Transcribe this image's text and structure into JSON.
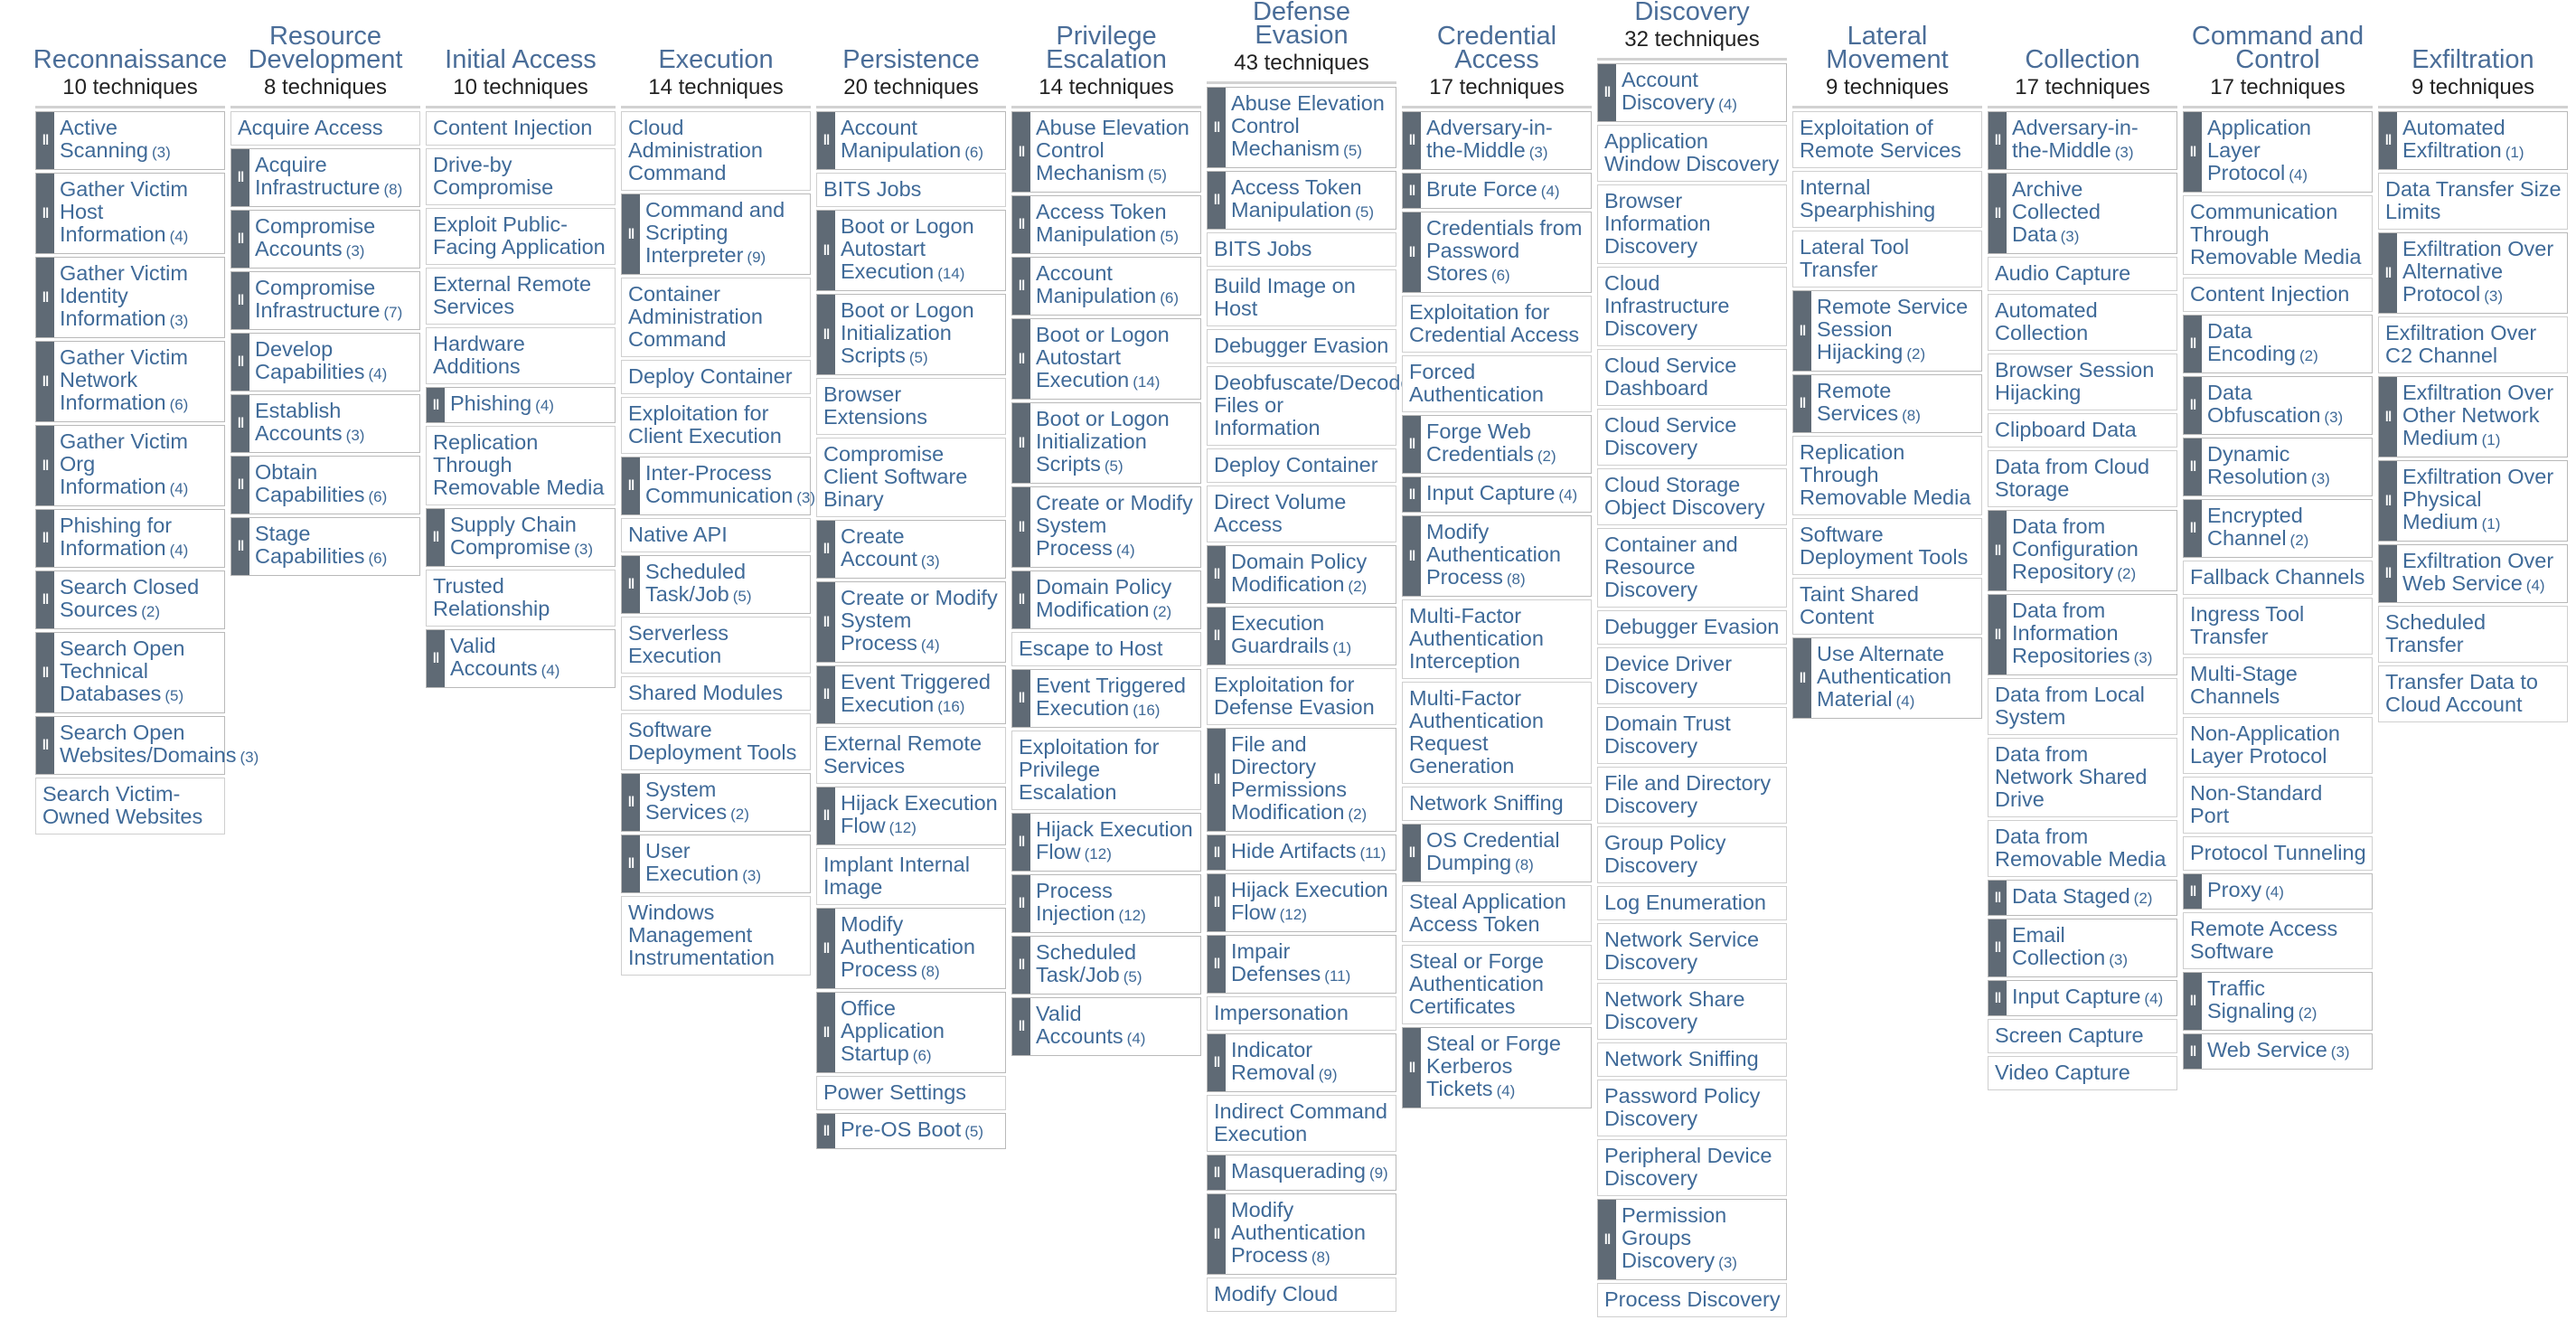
{
  "tactics": [
    {
      "name": "Reconnaissance",
      "count": "10 techniques",
      "techniques": [
        {
          "name": "Active Scanning",
          "sub": "(3)"
        },
        {
          "name": "Gather Victim Host Information",
          "sub": "(4)"
        },
        {
          "name": "Gather Victim Identity Information",
          "sub": "(3)"
        },
        {
          "name": "Gather Victim Network Information",
          "sub": "(6)"
        },
        {
          "name": "Gather Victim Org Information",
          "sub": "(4)"
        },
        {
          "name": "Phishing for Information",
          "sub": "(4)"
        },
        {
          "name": "Search Closed Sources",
          "sub": "(2)"
        },
        {
          "name": "Search Open Technical Databases",
          "sub": "(5)"
        },
        {
          "name": "Search Open Websites/Domains",
          "sub": "(3)"
        },
        {
          "name": "Search Victim-Owned Websites"
        }
      ]
    },
    {
      "name": "Resource Development",
      "count": "8 techniques",
      "techniques": [
        {
          "name": "Acquire Access"
        },
        {
          "name": "Acquire Infrastructure",
          "sub": "(8)"
        },
        {
          "name": "Compromise Accounts",
          "sub": "(3)"
        },
        {
          "name": "Compromise Infrastructure",
          "sub": "(7)"
        },
        {
          "name": "Develop Capabilities",
          "sub": "(4)"
        },
        {
          "name": "Establish Accounts",
          "sub": "(3)"
        },
        {
          "name": "Obtain Capabilities",
          "sub": "(6)"
        },
        {
          "name": "Stage Capabilities",
          "sub": "(6)"
        }
      ]
    },
    {
      "name": "Initial Access",
      "count": "10 techniques",
      "techniques": [
        {
          "name": "Content Injection"
        },
        {
          "name": "Drive-by Compromise"
        },
        {
          "name": "Exploit Public-Facing Application"
        },
        {
          "name": "External Remote Services"
        },
        {
          "name": "Hardware Additions"
        },
        {
          "name": "Phishing",
          "sub": "(4)"
        },
        {
          "name": "Replication Through Removable Media"
        },
        {
          "name": "Supply Chain Compromise",
          "sub": "(3)"
        },
        {
          "name": "Trusted Relationship"
        },
        {
          "name": "Valid Accounts",
          "sub": "(4)"
        }
      ]
    },
    {
      "name": "Execution",
      "count": "14 techniques",
      "techniques": [
        {
          "name": "Cloud Administration Command"
        },
        {
          "name": "Command and Scripting Interpreter",
          "sub": "(9)"
        },
        {
          "name": "Container Administration Command"
        },
        {
          "name": "Deploy Container"
        },
        {
          "name": "Exploitation for Client Execution"
        },
        {
          "name": "Inter-Process Communication",
          "sub": "(3)"
        },
        {
          "name": "Native API"
        },
        {
          "name": "Scheduled Task/Job",
          "sub": "(5)"
        },
        {
          "name": "Serverless Execution"
        },
        {
          "name": "Shared Modules"
        },
        {
          "name": "Software Deployment Tools"
        },
        {
          "name": "System Services",
          "sub": "(2)"
        },
        {
          "name": "User Execution",
          "sub": "(3)"
        },
        {
          "name": "Windows Management Instrumentation"
        }
      ]
    },
    {
      "name": "Persistence",
      "count": "20 techniques",
      "techniques": [
        {
          "name": "Account Manipulation",
          "sub": "(6)"
        },
        {
          "name": "BITS Jobs"
        },
        {
          "name": "Boot or Logon Autostart Execution",
          "sub": "(14)"
        },
        {
          "name": "Boot or Logon Initialization Scripts",
          "sub": "(5)"
        },
        {
          "name": "Browser Extensions"
        },
        {
          "name": "Compromise Client Software Binary"
        },
        {
          "name": "Create Account",
          "sub": "(3)"
        },
        {
          "name": "Create or Modify System Process",
          "sub": "(4)"
        },
        {
          "name": "Event Triggered Execution",
          "sub": "(16)"
        },
        {
          "name": "External Remote Services"
        },
        {
          "name": "Hijack Execution Flow",
          "sub": "(12)"
        },
        {
          "name": "Implant Internal Image"
        },
        {
          "name": "Modify Authentication Process",
          "sub": "(8)"
        },
        {
          "name": "Office Application Startup",
          "sub": "(6)"
        },
        {
          "name": "Power Settings"
        },
        {
          "name": "Pre-OS Boot",
          "sub": "(5)"
        }
      ]
    },
    {
      "name": "Privilege Escalation",
      "count": "14 techniques",
      "techniques": [
        {
          "name": "Abuse Elevation Control Mechanism",
          "sub": "(5)"
        },
        {
          "name": "Access Token Manipulation",
          "sub": "(5)"
        },
        {
          "name": "Account Manipulation",
          "sub": "(6)"
        },
        {
          "name": "Boot or Logon Autostart Execution",
          "sub": "(14)"
        },
        {
          "name": "Boot or Logon Initialization Scripts",
          "sub": "(5)"
        },
        {
          "name": "Create or Modify System Process",
          "sub": "(4)"
        },
        {
          "name": "Domain Policy Modification",
          "sub": "(2)"
        },
        {
          "name": "Escape to Host"
        },
        {
          "name": "Event Triggered Execution",
          "sub": "(16)"
        },
        {
          "name": "Exploitation for Privilege Escalation"
        },
        {
          "name": "Hijack Execution Flow",
          "sub": "(12)"
        },
        {
          "name": "Process Injection",
          "sub": "(12)"
        },
        {
          "name": "Scheduled Task/Job",
          "sub": "(5)"
        },
        {
          "name": "Valid Accounts",
          "sub": "(4)"
        }
      ]
    },
    {
      "name": "Defense Evasion",
      "count": "43 techniques",
      "techniques": [
        {
          "name": "Abuse Elevation Control Mechanism",
          "sub": "(5)"
        },
        {
          "name": "Access Token Manipulation",
          "sub": "(5)"
        },
        {
          "name": "BITS Jobs"
        },
        {
          "name": "Build Image on Host"
        },
        {
          "name": "Debugger Evasion"
        },
        {
          "name": "Deobfuscate/Decode Files or Information"
        },
        {
          "name": "Deploy Container"
        },
        {
          "name": "Direct Volume Access"
        },
        {
          "name": "Domain Policy Modification",
          "sub": "(2)"
        },
        {
          "name": "Execution Guardrails",
          "sub": "(1)"
        },
        {
          "name": "Exploitation for Defense Evasion"
        },
        {
          "name": "File and Directory Permissions Modification",
          "sub": "(2)"
        },
        {
          "name": "Hide Artifacts",
          "sub": "(11)"
        },
        {
          "name": "Hijack Execution Flow",
          "sub": "(12)"
        },
        {
          "name": "Impair Defenses",
          "sub": "(11)"
        },
        {
          "name": "Impersonation"
        },
        {
          "name": "Indicator Removal",
          "sub": "(9)"
        },
        {
          "name": "Indirect Command Execution"
        },
        {
          "name": "Masquerading",
          "sub": "(9)"
        },
        {
          "name": "Modify Authentication Process",
          "sub": "(8)"
        },
        {
          "name": "Modify Cloud"
        }
      ]
    },
    {
      "name": "Credential Access",
      "count": "17 techniques",
      "techniques": [
        {
          "name": "Adversary-in-the-Middle",
          "sub": "(3)"
        },
        {
          "name": "Brute Force",
          "sub": "(4)"
        },
        {
          "name": "Credentials from Password Stores",
          "sub": "(6)"
        },
        {
          "name": "Exploitation for Credential Access"
        },
        {
          "name": "Forced Authentication"
        },
        {
          "name": "Forge Web Credentials",
          "sub": "(2)"
        },
        {
          "name": "Input Capture",
          "sub": "(4)"
        },
        {
          "name": "Modify Authentication Process",
          "sub": "(8)"
        },
        {
          "name": "Multi-Factor Authentication Interception"
        },
        {
          "name": "Multi-Factor Authentication Request Generation"
        },
        {
          "name": "Network Sniffing"
        },
        {
          "name": "OS Credential Dumping",
          "sub": "(8)"
        },
        {
          "name": "Steal Application Access Token"
        },
        {
          "name": "Steal or Forge Authentication Certificates"
        },
        {
          "name": "Steal or Forge Kerberos Tickets",
          "sub": "(4)"
        }
      ]
    },
    {
      "name": "Discovery",
      "count": "32 techniques",
      "techniques": [
        {
          "name": "Account Discovery",
          "sub": "(4)"
        },
        {
          "name": "Application Window Discovery"
        },
        {
          "name": "Browser Information Discovery"
        },
        {
          "name": "Cloud Infrastructure Discovery"
        },
        {
          "name": "Cloud Service Dashboard"
        },
        {
          "name": "Cloud Service Discovery"
        },
        {
          "name": "Cloud Storage Object Discovery"
        },
        {
          "name": "Container and Resource Discovery"
        },
        {
          "name": "Debugger Evasion"
        },
        {
          "name": "Device Driver Discovery"
        },
        {
          "name": "Domain Trust Discovery"
        },
        {
          "name": "File and Directory Discovery"
        },
        {
          "name": "Group Policy Discovery"
        },
        {
          "name": "Log Enumeration"
        },
        {
          "name": "Network Service Discovery"
        },
        {
          "name": "Network Share Discovery"
        },
        {
          "name": "Network Sniffing"
        },
        {
          "name": "Password Policy Discovery"
        },
        {
          "name": "Peripheral Device Discovery"
        },
        {
          "name": "Permission Groups Discovery",
          "sub": "(3)"
        },
        {
          "name": "Process Discovery"
        }
      ]
    },
    {
      "name": "Lateral Movement",
      "count": "9 techniques",
      "techniques": [
        {
          "name": "Exploitation of Remote Services"
        },
        {
          "name": "Internal Spearphishing"
        },
        {
          "name": "Lateral Tool Transfer"
        },
        {
          "name": "Remote Service Session Hijacking",
          "sub": "(2)"
        },
        {
          "name": "Remote Services",
          "sub": "(8)"
        },
        {
          "name": "Replication Through Removable Media"
        },
        {
          "name": "Software Deployment Tools"
        },
        {
          "name": "Taint Shared Content"
        },
        {
          "name": "Use Alternate Authentication Material",
          "sub": "(4)"
        }
      ]
    },
    {
      "name": "Collection",
      "count": "17 techniques",
      "techniques": [
        {
          "name": "Adversary-in-the-Middle",
          "sub": "(3)"
        },
        {
          "name": "Archive Collected Data",
          "sub": "(3)"
        },
        {
          "name": "Audio Capture"
        },
        {
          "name": "Automated Collection"
        },
        {
          "name": "Browser Session Hijacking"
        },
        {
          "name": "Clipboard Data"
        },
        {
          "name": "Data from Cloud Storage"
        },
        {
          "name": "Data from Configuration Repository",
          "sub": "(2)"
        },
        {
          "name": "Data from Information Repositories",
          "sub": "(3)"
        },
        {
          "name": "Data from Local System"
        },
        {
          "name": "Data from Network Shared Drive"
        },
        {
          "name": "Data from Removable Media"
        },
        {
          "name": "Data Staged",
          "sub": "(2)"
        },
        {
          "name": "Email Collection",
          "sub": "(3)"
        },
        {
          "name": "Input Capture",
          "sub": "(4)"
        },
        {
          "name": "Screen Capture"
        },
        {
          "name": "Video Capture"
        }
      ]
    },
    {
      "name": "Command and Control",
      "count": "17 techniques",
      "techniques": [
        {
          "name": "Application Layer Protocol",
          "sub": "(4)"
        },
        {
          "name": "Communication Through Removable Media"
        },
        {
          "name": "Content Injection"
        },
        {
          "name": "Data Encoding",
          "sub": "(2)"
        },
        {
          "name": "Data Obfuscation",
          "sub": "(3)"
        },
        {
          "name": "Dynamic Resolution",
          "sub": "(3)"
        },
        {
          "name": "Encrypted Channel",
          "sub": "(2)"
        },
        {
          "name": "Fallback Channels"
        },
        {
          "name": "Ingress Tool Transfer"
        },
        {
          "name": "Multi-Stage Channels"
        },
        {
          "name": "Non-Application Layer Protocol"
        },
        {
          "name": "Non-Standard Port"
        },
        {
          "name": "Protocol Tunneling"
        },
        {
          "name": "Proxy",
          "sub": "(4)"
        },
        {
          "name": "Remote Access Software"
        },
        {
          "name": "Traffic Signaling",
          "sub": "(2)"
        },
        {
          "name": "Web Service",
          "sub": "(3)"
        }
      ]
    },
    {
      "name": "Exfiltration",
      "count": "9 techniques",
      "techniques": [
        {
          "name": "Automated Exfiltration",
          "sub": "(1)"
        },
        {
          "name": "Data Transfer Size Limits"
        },
        {
          "name": "Exfiltration Over Alternative Protocol",
          "sub": "(3)"
        },
        {
          "name": "Exfiltration Over C2 Channel"
        },
        {
          "name": "Exfiltration Over Other Network Medium",
          "sub": "(1)"
        },
        {
          "name": "Exfiltration Over Physical Medium",
          "sub": "(1)"
        },
        {
          "name": "Exfiltration Over Web Service",
          "sub": "(4)"
        },
        {
          "name": "Scheduled Transfer"
        },
        {
          "name": "Transfer Data to Cloud Account"
        }
      ]
    }
  ],
  "colors": {
    "link": "#3f6a98",
    "header": "#4a6d98",
    "bar": "#5f6a75",
    "border": "#cfcfcf"
  },
  "icons": {
    "expand_handle": "double-bar-icon"
  }
}
